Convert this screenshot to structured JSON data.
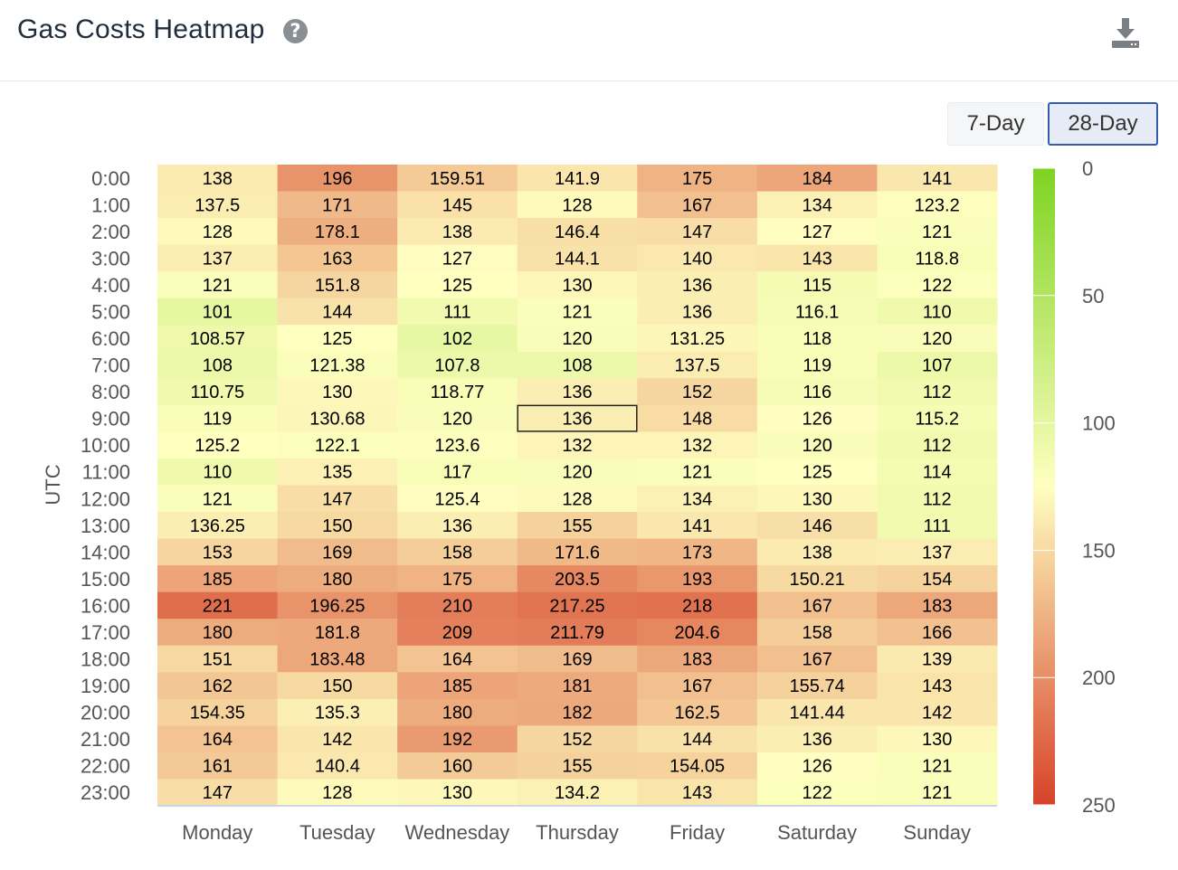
{
  "header": {
    "title": "Gas Costs Heatmap",
    "help_glyph": "?",
    "help_icon": "help-circle-icon",
    "download_icon": "download-icon"
  },
  "range": {
    "options": [
      {
        "label": "7-Day",
        "active": false
      },
      {
        "label": "28-Day",
        "active": true
      }
    ]
  },
  "colors": {
    "low": "#7ed321",
    "mid": "#ffffc0",
    "high": "#d7422a",
    "selected_border": "#222222"
  },
  "chart_data": {
    "type": "heatmap",
    "title": "Gas Costs Heatmap",
    "ylabel": "UTC",
    "xlabel": "",
    "x": [
      "Monday",
      "Tuesday",
      "Wednesday",
      "Thursday",
      "Friday",
      "Saturday",
      "Sunday"
    ],
    "y": [
      "0:00",
      "1:00",
      "2:00",
      "3:00",
      "4:00",
      "5:00",
      "6:00",
      "7:00",
      "8:00",
      "9:00",
      "10:00",
      "11:00",
      "12:00",
      "13:00",
      "14:00",
      "15:00",
      "16:00",
      "17:00",
      "18:00",
      "19:00",
      "20:00",
      "21:00",
      "22:00",
      "23:00"
    ],
    "values": [
      [
        "138",
        "196",
        "159.51",
        "141.9",
        "175",
        "184",
        "141"
      ],
      [
        "137.5",
        "171",
        "145",
        "128",
        "167",
        "134",
        "123.2"
      ],
      [
        "128",
        "178.1",
        "138",
        "146.4",
        "147",
        "127",
        "121"
      ],
      [
        "137",
        "163",
        "127",
        "144.1",
        "140",
        "143",
        "118.8"
      ],
      [
        "121",
        "151.8",
        "125",
        "130",
        "136",
        "115",
        "122"
      ],
      [
        "101",
        "144",
        "111",
        "121",
        "136",
        "116.1",
        "110"
      ],
      [
        "108.57",
        "125",
        "102",
        "120",
        "131.25",
        "118",
        "120"
      ],
      [
        "108",
        "121.38",
        "107.8",
        "108",
        "137.5",
        "119",
        "107"
      ],
      [
        "110.75",
        "130",
        "118.77",
        "136",
        "152",
        "116",
        "112"
      ],
      [
        "119",
        "130.68",
        "120",
        "136",
        "148",
        "126",
        "115.2"
      ],
      [
        "125.2",
        "122.1",
        "123.6",
        "132",
        "132",
        "120",
        "112"
      ],
      [
        "110",
        "135",
        "117",
        "120",
        "121",
        "125",
        "114"
      ],
      [
        "121",
        "147",
        "125.4",
        "128",
        "134",
        "130",
        "112"
      ],
      [
        "136.25",
        "150",
        "136",
        "155",
        "141",
        "146",
        "111"
      ],
      [
        "153",
        "169",
        "158",
        "171.6",
        "173",
        "138",
        "137"
      ],
      [
        "185",
        "180",
        "175",
        "203.5",
        "193",
        "150.21",
        "154"
      ],
      [
        "221",
        "196.25",
        "210",
        "217.25",
        "218",
        "167",
        "183"
      ],
      [
        "180",
        "181.8",
        "209",
        "211.79",
        "204.6",
        "158",
        "166"
      ],
      [
        "151",
        "183.48",
        "164",
        "169",
        "183",
        "167",
        "139"
      ],
      [
        "162",
        "150",
        "185",
        "181",
        "167",
        "155.74",
        "143"
      ],
      [
        "154.35",
        "135.3",
        "180",
        "182",
        "162.5",
        "141.44",
        "142"
      ],
      [
        "164",
        "142",
        "192",
        "152",
        "144",
        "136",
        "130"
      ],
      [
        "161",
        "140.4",
        "160",
        "155",
        "154.05",
        "126",
        "121"
      ],
      [
        "147",
        "128",
        "130",
        "134.2",
        "143",
        "122",
        "121"
      ]
    ],
    "selected_cell": {
      "day": "Thursday",
      "hour": "9:00"
    },
    "color_scale": {
      "min": 0,
      "max": 250,
      "ticks": [
        "0",
        "50",
        "100",
        "150",
        "200",
        "250"
      ],
      "orientation": "vertical",
      "placement": "right"
    },
    "grid": false
  }
}
